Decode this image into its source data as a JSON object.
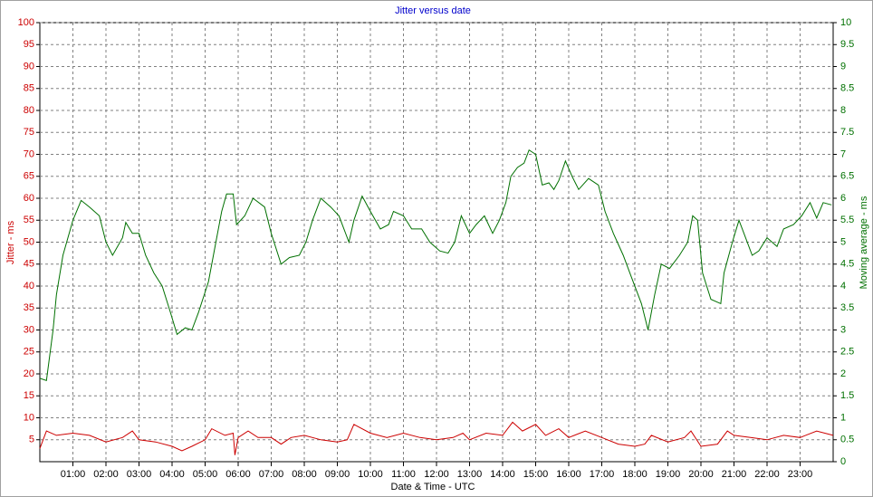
{
  "chart_data": {
    "type": "line",
    "title": "Jitter versus date",
    "xlabel": "Date & Time - UTC",
    "ylabel": "Jitter - ms",
    "y2label": "Moving average - ms",
    "xlim": [
      0,
      24
    ],
    "xticks": [
      {
        "value": 1,
        "label": "01:00"
      },
      {
        "value": 2,
        "label": "02:00"
      },
      {
        "value": 3,
        "label": "03:00"
      },
      {
        "value": 4,
        "label": "04:00"
      },
      {
        "value": 5,
        "label": "05:00"
      },
      {
        "value": 6,
        "label": "06:00"
      },
      {
        "value": 7,
        "label": "07:00"
      },
      {
        "value": 8,
        "label": "08:00"
      },
      {
        "value": 9,
        "label": "09:00"
      },
      {
        "value": 10,
        "label": "10:00"
      },
      {
        "value": 11,
        "label": "11:00"
      },
      {
        "value": 12,
        "label": "12:00"
      },
      {
        "value": 13,
        "label": "13:00"
      },
      {
        "value": 14,
        "label": "14:00"
      },
      {
        "value": 15,
        "label": "15:00"
      },
      {
        "value": 16,
        "label": "16:00"
      },
      {
        "value": 17,
        "label": "17:00"
      },
      {
        "value": 18,
        "label": "18:00"
      },
      {
        "value": 19,
        "label": "19:00"
      },
      {
        "value": 20,
        "label": "20:00"
      },
      {
        "value": 21,
        "label": "21:00"
      },
      {
        "value": 22,
        "label": "22:00"
      },
      {
        "value": 23,
        "label": "23:00"
      }
    ],
    "ylim": [
      0,
      100
    ],
    "yticks": [
      5,
      10,
      15,
      20,
      25,
      30,
      35,
      40,
      45,
      50,
      55,
      60,
      65,
      70,
      75,
      80,
      85,
      90,
      95,
      100
    ],
    "y2lim": [
      0,
      10
    ],
    "y2ticks": [
      0,
      0.5,
      1,
      1.5,
      2,
      2.5,
      3,
      3.5,
      4,
      4.5,
      5,
      5.5,
      6,
      6.5,
      7,
      7.5,
      8,
      8.5,
      9,
      9.5,
      10
    ],
    "grid": true,
    "series": [
      {
        "color": "#cc0000",
        "x": [
          0,
          0.2,
          0.5,
          1,
          1.5,
          2,
          2.5,
          2.8,
          3,
          3.5,
          4,
          4.3,
          4.6,
          5,
          5.2,
          5.6,
          5.85,
          5.9,
          6,
          6.3,
          6.6,
          7,
          7.3,
          7.6,
          8,
          8.5,
          9,
          9.3,
          9.5,
          10,
          10.5,
          11,
          11.5,
          12,
          12.5,
          12.8,
          13,
          13.5,
          14,
          14.3,
          14.6,
          15,
          15.3,
          15.7,
          16,
          16.5,
          17,
          17.5,
          18,
          18.3,
          18.5,
          19,
          19.5,
          19.7,
          20,
          20.5,
          20.8,
          21,
          21.5,
          22,
          22.5,
          23,
          23.5,
          24
        ],
        "values": [
          3,
          7,
          6,
          6.5,
          6,
          4.5,
          5.5,
          7,
          5,
          4.5,
          3.5,
          2.5,
          3.5,
          5,
          7.5,
          6,
          6.5,
          1.5,
          5.5,
          7,
          5.5,
          5.5,
          4,
          5.5,
          6,
          5,
          4.5,
          5,
          8.5,
          6.5,
          5.5,
          6.5,
          5.5,
          5,
          5.5,
          6.5,
          5,
          6.5,
          6,
          9,
          7,
          8.5,
          6,
          7.5,
          5.5,
          7,
          5.5,
          4,
          3.5,
          4,
          6,
          4.5,
          5.5,
          7,
          3.5,
          4,
          7,
          6,
          5.5,
          5,
          6,
          5.5,
          7,
          6
        ]
      },
      {
        "color": "#007000",
        "axis": "y2",
        "x": [
          0,
          0.2,
          0.4,
          0.5,
          0.7,
          1,
          1.25,
          1.5,
          1.8,
          2,
          2.2,
          2.5,
          2.6,
          2.8,
          3,
          3.2,
          3.45,
          3.7,
          3.95,
          4.15,
          4.4,
          4.6,
          4.8,
          5.1,
          5.35,
          5.5,
          5.65,
          5.85,
          5.95,
          6.2,
          6.45,
          6.8,
          7,
          7.3,
          7.55,
          7.85,
          8.05,
          8.25,
          8.5,
          8.8,
          9.05,
          9.35,
          9.5,
          9.75,
          10,
          10.3,
          10.55,
          10.7,
          11,
          11.25,
          11.55,
          11.8,
          12.1,
          12.35,
          12.55,
          12.75,
          13,
          13.2,
          13.45,
          13.7,
          13.9,
          14.1,
          14.25,
          14.45,
          14.65,
          14.8,
          15,
          15.2,
          15.4,
          15.55,
          15.7,
          15.9,
          16.1,
          16.3,
          16.6,
          16.9,
          17.1,
          17.35,
          17.65,
          17.9,
          18.2,
          18.4,
          18.6,
          18.8,
          19.05,
          19.35,
          19.6,
          19.75,
          19.9,
          20.05,
          20.3,
          20.6,
          20.7,
          20.95,
          21.15,
          21.3,
          21.55,
          21.75,
          22,
          22.3,
          22.5,
          22.8,
          23.05,
          23.3,
          23.5,
          23.7,
          23.95
        ],
        "values": [
          1.9,
          1.85,
          3.0,
          3.8,
          4.7,
          5.5,
          5.95,
          5.8,
          5.6,
          5.0,
          4.7,
          5.1,
          5.45,
          5.2,
          5.2,
          4.7,
          4.3,
          4.0,
          3.4,
          2.9,
          3.05,
          3.0,
          3.4,
          4.1,
          5.1,
          5.7,
          6.1,
          6.1,
          5.4,
          5.6,
          6.0,
          5.8,
          5.2,
          4.5,
          4.65,
          4.7,
          5.0,
          5.5,
          6.0,
          5.8,
          5.6,
          5.0,
          5.5,
          6.05,
          5.7,
          5.3,
          5.4,
          5.7,
          5.6,
          5.3,
          5.3,
          5.0,
          4.8,
          4.75,
          5.0,
          5.6,
          5.2,
          5.4,
          5.6,
          5.2,
          5.5,
          5.9,
          6.5,
          6.7,
          6.8,
          7.1,
          7.0,
          6.3,
          6.35,
          6.2,
          6.4,
          6.85,
          6.5,
          6.2,
          6.45,
          6.3,
          5.7,
          5.2,
          4.7,
          4.2,
          3.6,
          3.0,
          3.8,
          4.5,
          4.4,
          4.7,
          5.0,
          5.6,
          5.5,
          4.3,
          3.7,
          3.6,
          4.3,
          5.0,
          5.5,
          5.2,
          4.7,
          4.8,
          5.1,
          4.9,
          5.3,
          5.4,
          5.6,
          5.9,
          5.55,
          5.9,
          5.85
        ]
      }
    ]
  }
}
